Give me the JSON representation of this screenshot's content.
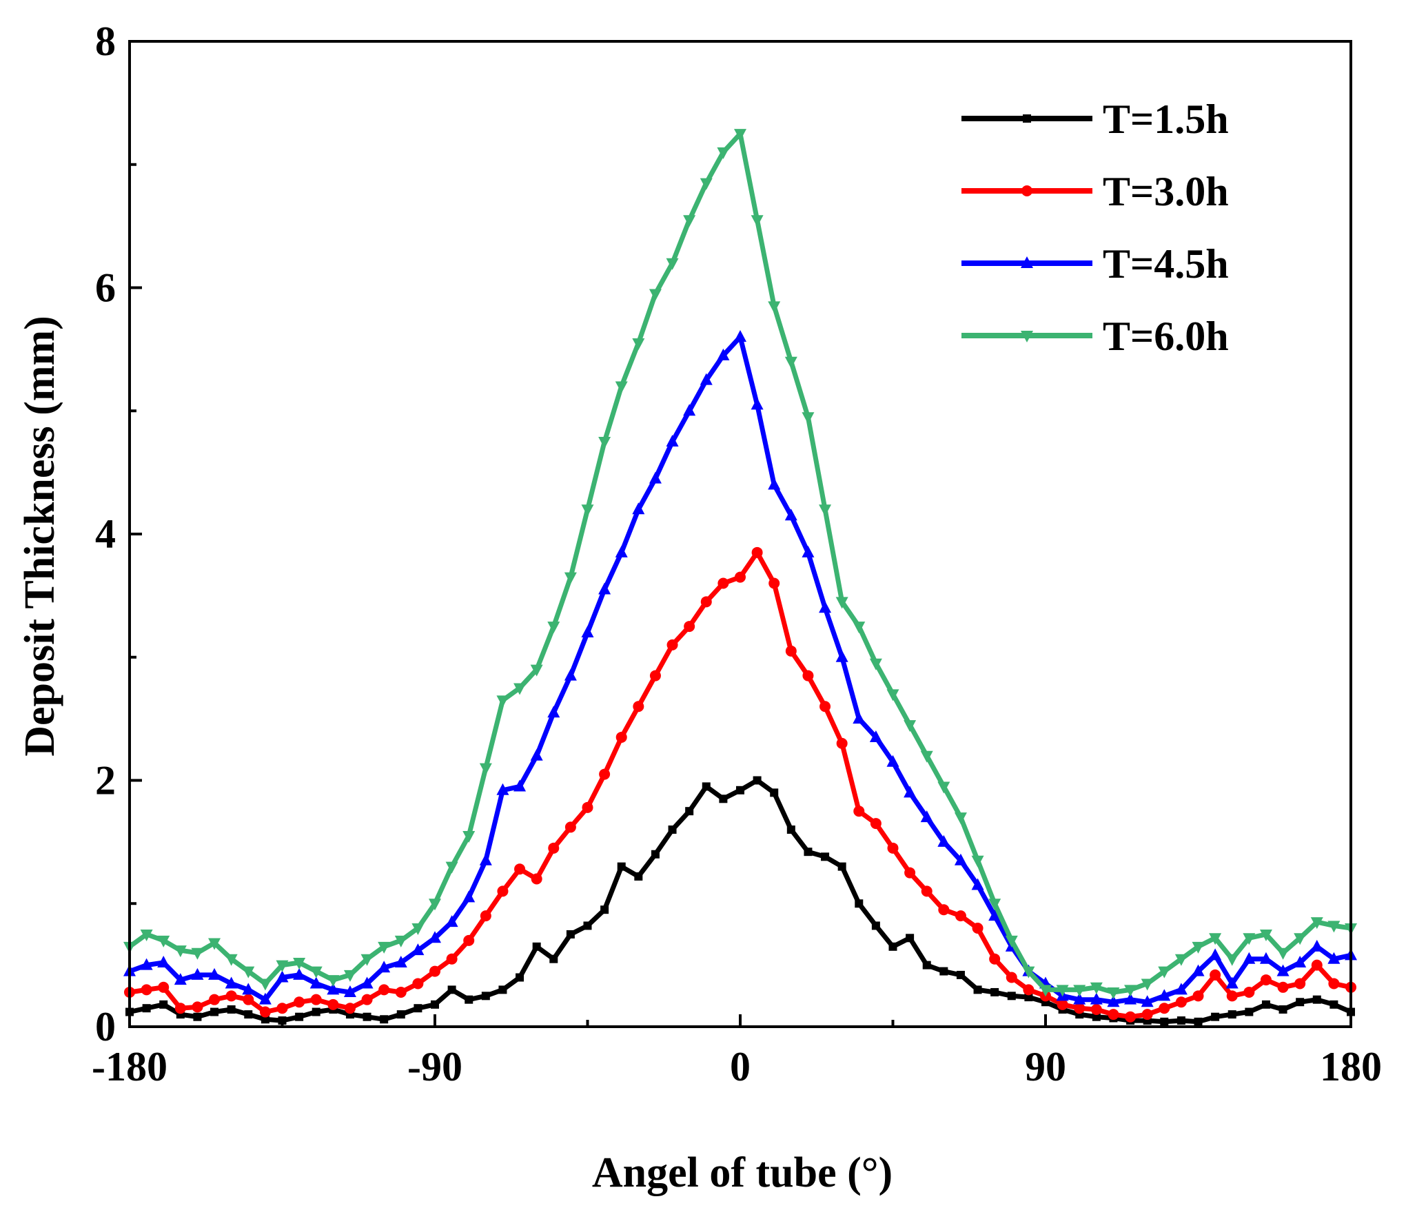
{
  "chart_data": {
    "type": "line",
    "title": "",
    "xlabel": "Angel of tube (°)",
    "ylabel": "Deposit Thickness (mm)",
    "xlim": [
      -180,
      180
    ],
    "ylim": [
      0,
      8
    ],
    "xticks": [
      -180,
      -90,
      0,
      90,
      180
    ],
    "yticks": [
      0,
      2,
      4,
      6,
      8
    ],
    "grid": false,
    "legend_position": "top-right",
    "series": [
      {
        "name": "T=1.5h",
        "color": "#000000",
        "marker": "square",
        "x": [
          -180,
          -175,
          -170,
          -165,
          -160,
          -155,
          -150,
          -145,
          -140,
          -135,
          -130,
          -125,
          -120,
          -115,
          -110,
          -105,
          -100,
          -95,
          -90,
          -85,
          -80,
          -75,
          -70,
          -65,
          -60,
          -55,
          -50,
          -45,
          -40,
          -35,
          -30,
          -25,
          -20,
          -15,
          -10,
          -5,
          0,
          5,
          10,
          15,
          20,
          25,
          30,
          35,
          40,
          45,
          50,
          55,
          60,
          65,
          70,
          75,
          80,
          85,
          90,
          95,
          100,
          105,
          110,
          115,
          120,
          125,
          130,
          135,
          140,
          145,
          150,
          155,
          160,
          165,
          170,
          175,
          180
        ],
        "y": [
          0.12,
          0.15,
          0.18,
          0.1,
          0.08,
          0.12,
          0.14,
          0.1,
          0.06,
          0.05,
          0.08,
          0.12,
          0.14,
          0.1,
          0.08,
          0.06,
          0.1,
          0.15,
          0.18,
          0.3,
          0.22,
          0.25,
          0.3,
          0.4,
          0.65,
          0.55,
          0.75,
          0.82,
          0.95,
          1.3,
          1.22,
          1.4,
          1.6,
          1.75,
          1.95,
          1.85,
          1.92,
          2.0,
          1.9,
          1.6,
          1.42,
          1.38,
          1.3,
          1.0,
          0.82,
          0.65,
          0.72,
          0.5,
          0.45,
          0.42,
          0.3,
          0.28,
          0.25,
          0.24,
          0.2,
          0.14,
          0.1,
          0.08,
          0.07,
          0.05,
          0.05,
          0.04,
          0.05,
          0.04,
          0.08,
          0.1,
          0.12,
          0.18,
          0.14,
          0.2,
          0.22,
          0.18,
          0.12
        ]
      },
      {
        "name": "T=3.0h",
        "color": "#ff0000",
        "marker": "circle",
        "x": [
          -180,
          -175,
          -170,
          -165,
          -160,
          -155,
          -150,
          -145,
          -140,
          -135,
          -130,
          -125,
          -120,
          -115,
          -110,
          -105,
          -100,
          -95,
          -90,
          -85,
          -80,
          -75,
          -70,
          -65,
          -60,
          -55,
          -50,
          -45,
          -40,
          -35,
          -30,
          -25,
          -20,
          -15,
          -10,
          -5,
          0,
          5,
          10,
          15,
          20,
          25,
          30,
          35,
          40,
          45,
          50,
          55,
          60,
          65,
          70,
          75,
          80,
          85,
          90,
          95,
          100,
          105,
          110,
          115,
          120,
          125,
          130,
          135,
          140,
          145,
          150,
          155,
          160,
          165,
          170,
          175,
          180
        ],
        "y": [
          0.28,
          0.3,
          0.32,
          0.15,
          0.16,
          0.22,
          0.25,
          0.22,
          0.12,
          0.15,
          0.2,
          0.22,
          0.18,
          0.15,
          0.22,
          0.3,
          0.28,
          0.35,
          0.45,
          0.55,
          0.7,
          0.9,
          1.1,
          1.28,
          1.2,
          1.45,
          1.62,
          1.78,
          2.05,
          2.35,
          2.6,
          2.85,
          3.1,
          3.25,
          3.45,
          3.6,
          3.65,
          3.85,
          3.6,
          3.05,
          2.85,
          2.6,
          2.3,
          1.75,
          1.65,
          1.45,
          1.25,
          1.1,
          0.95,
          0.9,
          0.8,
          0.55,
          0.4,
          0.3,
          0.25,
          0.18,
          0.15,
          0.14,
          0.1,
          0.08,
          0.1,
          0.15,
          0.2,
          0.25,
          0.42,
          0.25,
          0.28,
          0.38,
          0.32,
          0.35,
          0.5,
          0.35,
          0.32
        ]
      },
      {
        "name": "T=4.5h",
        "color": "#0000ff",
        "marker": "triangle-up",
        "x": [
          -180,
          -175,
          -170,
          -165,
          -160,
          -155,
          -150,
          -145,
          -140,
          -135,
          -130,
          -125,
          -120,
          -115,
          -110,
          -105,
          -100,
          -95,
          -90,
          -85,
          -80,
          -75,
          -70,
          -65,
          -60,
          -55,
          -50,
          -45,
          -40,
          -35,
          -30,
          -25,
          -20,
          -15,
          -10,
          -5,
          0,
          5,
          10,
          15,
          20,
          25,
          30,
          35,
          40,
          45,
          50,
          55,
          60,
          65,
          70,
          75,
          80,
          85,
          90,
          95,
          100,
          105,
          110,
          115,
          120,
          125,
          130,
          135,
          140,
          145,
          150,
          155,
          160,
          165,
          170,
          175,
          180
        ],
        "y": [
          0.45,
          0.5,
          0.52,
          0.38,
          0.42,
          0.42,
          0.35,
          0.3,
          0.22,
          0.4,
          0.42,
          0.35,
          0.3,
          0.28,
          0.35,
          0.48,
          0.52,
          0.62,
          0.72,
          0.85,
          1.05,
          1.35,
          1.92,
          1.95,
          2.2,
          2.55,
          2.85,
          3.2,
          3.55,
          3.85,
          4.2,
          4.45,
          4.75,
          5.0,
          5.25,
          5.45,
          5.6,
          5.05,
          4.4,
          4.15,
          3.85,
          3.4,
          3.0,
          2.5,
          2.35,
          2.15,
          1.9,
          1.7,
          1.5,
          1.35,
          1.15,
          0.9,
          0.65,
          0.45,
          0.35,
          0.25,
          0.22,
          0.22,
          0.2,
          0.22,
          0.2,
          0.25,
          0.3,
          0.45,
          0.58,
          0.35,
          0.55,
          0.55,
          0.45,
          0.52,
          0.65,
          0.55,
          0.58
        ]
      },
      {
        "name": "T=6.0h",
        "color": "#3cb371",
        "marker": "triangle-down",
        "x": [
          -180,
          -175,
          -170,
          -165,
          -160,
          -155,
          -150,
          -145,
          -140,
          -135,
          -130,
          -125,
          -120,
          -115,
          -110,
          -105,
          -100,
          -95,
          -90,
          -85,
          -80,
          -75,
          -70,
          -65,
          -60,
          -55,
          -50,
          -45,
          -40,
          -35,
          -30,
          -25,
          -20,
          -15,
          -10,
          -5,
          0,
          5,
          10,
          15,
          20,
          25,
          30,
          35,
          40,
          45,
          50,
          55,
          60,
          65,
          70,
          75,
          80,
          85,
          90,
          95,
          100,
          105,
          110,
          115,
          120,
          125,
          130,
          135,
          140,
          145,
          150,
          155,
          160,
          165,
          170,
          175,
          180
        ],
        "y": [
          0.65,
          0.75,
          0.7,
          0.62,
          0.6,
          0.68,
          0.55,
          0.45,
          0.35,
          0.5,
          0.52,
          0.45,
          0.38,
          0.42,
          0.55,
          0.65,
          0.7,
          0.8,
          1.0,
          1.3,
          1.55,
          2.1,
          2.65,
          2.75,
          2.9,
          3.25,
          3.65,
          4.2,
          4.75,
          5.2,
          5.55,
          5.95,
          6.2,
          6.55,
          6.85,
          7.1,
          7.25,
          6.55,
          5.85,
          5.4,
          4.95,
          4.2,
          3.45,
          3.25,
          2.95,
          2.7,
          2.45,
          2.2,
          1.95,
          1.7,
          1.35,
          1.0,
          0.7,
          0.45,
          0.3,
          0.3,
          0.3,
          0.32,
          0.28,
          0.3,
          0.35,
          0.45,
          0.55,
          0.65,
          0.72,
          0.55,
          0.72,
          0.75,
          0.6,
          0.72,
          0.85,
          0.82,
          0.8
        ]
      }
    ]
  }
}
